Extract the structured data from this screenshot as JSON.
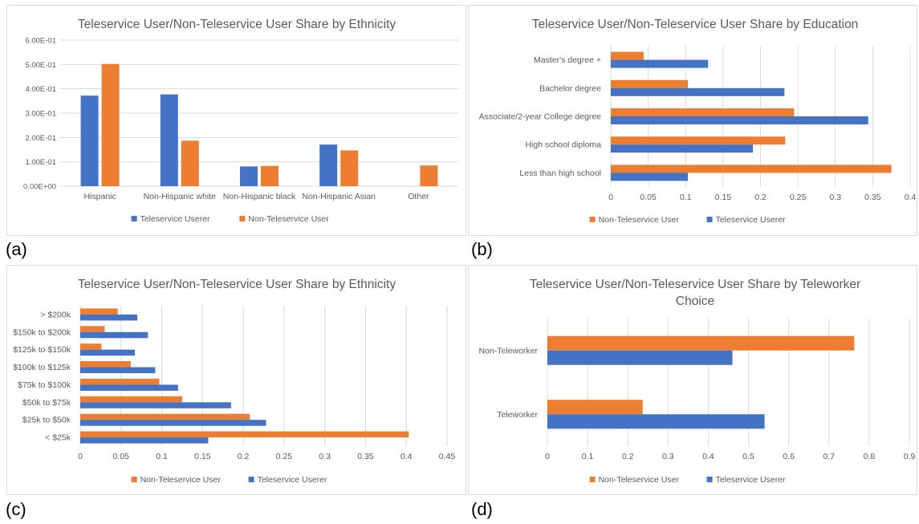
{
  "colors": {
    "user": "#4472C4",
    "nonuser": "#ED7D31",
    "grid": "#d9d9d9",
    "text": "#595959"
  },
  "panel_labels": [
    "(a)",
    "(b)",
    "(c)",
    "(d)"
  ],
  "chart_data": [
    {
      "type": "bar",
      "orientation": "vertical",
      "title": "Teleservice User/Non-Teleservice  User Share by Ethnicity",
      "categories": [
        "Hispanic",
        "Non-Hispanic white",
        "Non-Hispanic black",
        "Non-Hispanic Asian",
        "Other"
      ],
      "series": [
        {
          "name": "Teleservice Userer",
          "values": [
            0.372,
            0.377,
            0.081,
            0.171,
            0
          ]
        },
        {
          "name": "Non-Teleservice User",
          "values": [
            0.502,
            0.187,
            0.083,
            0.147,
            0.085
          ]
        }
      ],
      "ylim": [
        0,
        0.6
      ],
      "yticks": [
        0,
        0.1,
        0.2,
        0.3,
        0.4,
        0.5,
        0.6
      ],
      "ytick_labels": [
        "0.00E+00",
        "1.00E-01",
        "2.00E-01",
        "3.00E-01",
        "4.00E-01",
        "5.00E-01",
        "6.00E-01"
      ],
      "legend": [
        "Teleservice Userer",
        "Non-Teleservice User"
      ],
      "legend_position": "bottom",
      "grid": true
    },
    {
      "type": "bar",
      "orientation": "horizontal",
      "title": "Teleservice User/Non-Teleservice  User Share by Education",
      "categories": [
        "Master's degree +",
        "Bachelor degree",
        "Associate/2-year College degree",
        "High school diploma",
        "Less than high school"
      ],
      "series": [
        {
          "name": "Non-Teleservice User",
          "values": [
            0.044,
            0.103,
            0.245,
            0.233,
            0.375
          ]
        },
        {
          "name": "Teleservice Userer",
          "values": [
            0.13,
            0.232,
            0.344,
            0.19,
            0.103
          ]
        }
      ],
      "xlim": [
        0,
        0.4
      ],
      "xticks": [
        0,
        0.05,
        0.1,
        0.15,
        0.2,
        0.25,
        0.3,
        0.35,
        0.4
      ],
      "xtick_labels": [
        "0",
        "0.05",
        "0.1",
        "0.15",
        "0.2",
        "0.25",
        "0.3",
        "0.35",
        "0.4"
      ],
      "legend": [
        "Non-Teleservice User",
        "Teleservice Userer"
      ],
      "legend_position": "bottom",
      "grid": true
    },
    {
      "type": "bar",
      "orientation": "horizontal",
      "title": "Teleservice User/Non-Teleservice  User Share by Ethnicity",
      "categories": [
        "> $200k",
        "$150k to $200k",
        "$125k to $150k",
        "$100k to $125k",
        "$75k to $100k",
        "$50k to $75k",
        "$25k to $50k",
        "< $25k"
      ],
      "series": [
        {
          "name": "Non-Teleservice User",
          "values": [
            0.046,
            0.03,
            0.026,
            0.062,
            0.097,
            0.125,
            0.208,
            0.403
          ]
        },
        {
          "name": "Teleservice Userer",
          "values": [
            0.07,
            0.083,
            0.067,
            0.092,
            0.12,
            0.185,
            0.228,
            0.157
          ]
        }
      ],
      "xlim": [
        0,
        0.45
      ],
      "xticks": [
        0,
        0.05,
        0.1,
        0.15,
        0.2,
        0.25,
        0.3,
        0.35,
        0.4,
        0.45
      ],
      "xtick_labels": [
        "0",
        "0.05",
        "0.1",
        "0.15",
        "0.2",
        "0.25",
        "0.3",
        "0.35",
        "0.4",
        "0.45"
      ],
      "legend": [
        "Non-Teleservice User",
        "Teleservice Userer"
      ],
      "legend_position": "bottom",
      "grid": true
    },
    {
      "type": "bar",
      "orientation": "horizontal",
      "title": "Teleservice User/Non-Teleservice  User Share by Teleworker",
      "title_line2": "Choice",
      "categories": [
        "Non-Teleworker",
        "Teleworker"
      ],
      "series": [
        {
          "name": "Non-Teleservice User",
          "values": [
            0.763,
            0.237
          ]
        },
        {
          "name": "Teleservice Userer",
          "values": [
            0.46,
            0.54
          ]
        }
      ],
      "xlim": [
        0,
        0.9
      ],
      "xticks": [
        0,
        0.1,
        0.2,
        0.3,
        0.4,
        0.5,
        0.6,
        0.7,
        0.8,
        0.9
      ],
      "xtick_labels": [
        "0",
        "0.1",
        "0.2",
        "0.3",
        "0.4",
        "0.5",
        "0.6",
        "0.7",
        "0.8",
        "0.9"
      ],
      "legend": [
        "Non-Teleservice User",
        "Teleservice Userer"
      ],
      "legend_position": "bottom",
      "grid": true
    }
  ]
}
